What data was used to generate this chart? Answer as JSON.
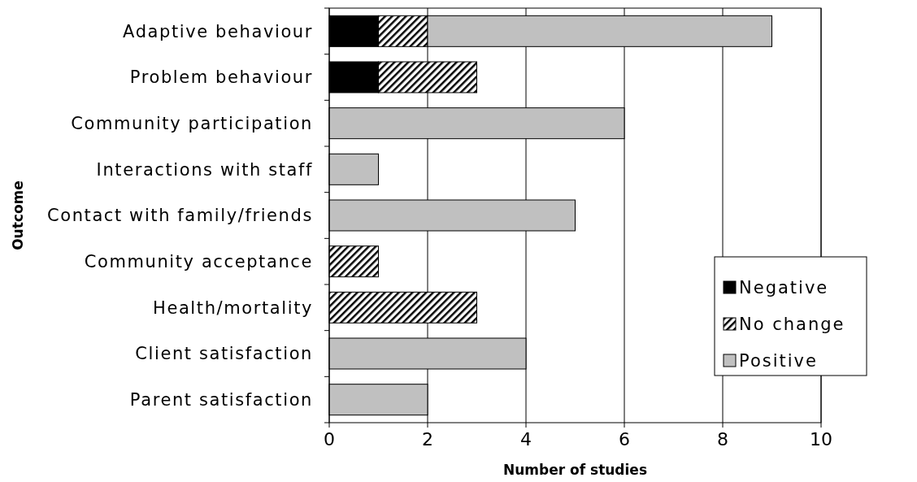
{
  "chart_data": {
    "type": "bar",
    "orientation": "horizontal",
    "stacked": true,
    "xlabel": "Number of studies",
    "ylabel": "Outcome",
    "categories": [
      "Adaptive behaviour",
      "Problem behaviour",
      "Community participation",
      "Interactions with staff",
      "Contact with family/friends",
      "Community acceptance",
      "Health/mortality",
      "Client satisfaction",
      "Parent satisfaction"
    ],
    "series": [
      {
        "name": "Negative",
        "color": "#000000",
        "values": [
          1,
          1,
          0,
          0,
          0,
          0,
          0,
          0,
          0
        ]
      },
      {
        "name": "No change",
        "color": "#000000",
        "values": [
          1,
          2,
          0,
          0,
          0,
          1,
          3,
          0,
          0
        ]
      },
      {
        "name": "Positive",
        "color": "#c0c0c0",
        "values": [
          7,
          0,
          6,
          1,
          5,
          0,
          0,
          4,
          2
        ]
      }
    ],
    "xlim": [
      0,
      10
    ],
    "xticks": [
      0,
      2,
      4,
      6,
      8,
      10
    ],
    "grid": "x",
    "legend": "bottom right"
  }
}
